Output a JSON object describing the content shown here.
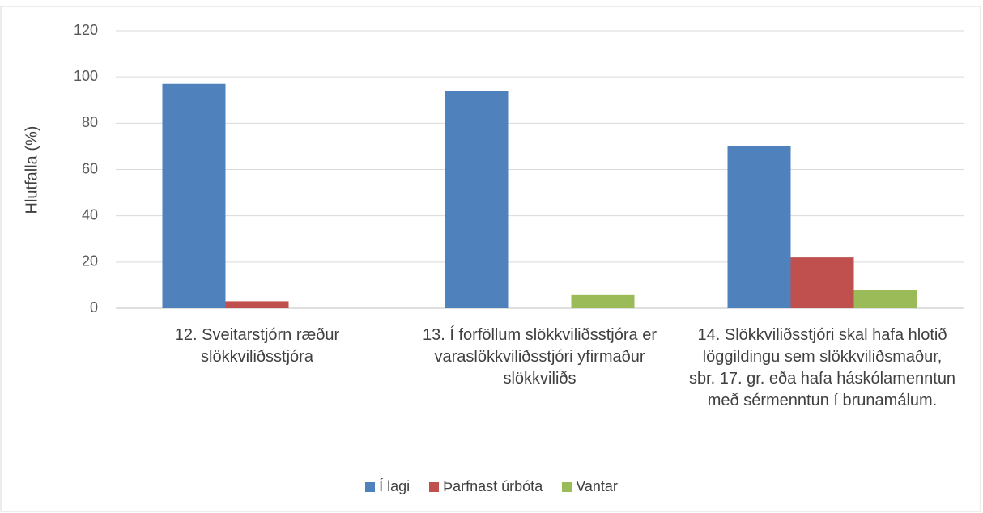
{
  "chart_data": {
    "type": "bar",
    "y_label": "Hlutfalla (%)",
    "categories": [
      "12. Sveitarstjórn ræður slökkviliðsstjóra",
      "13. Í forföllum slökkviliðsstjóra er varaslökkviliðsstjóri yfirmaður slökkviliðs",
      "14. Slökkviliðsstjóri skal hafa hlotið löggildingu sem slökkviliðsmaður, sbr. 17. gr. eða hafa háskólamenntun með sérmenntun í brunamálum."
    ],
    "series": [
      {
        "name": "Í lagi",
        "color": "#4f81bd",
        "values": [
          97,
          94,
          70
        ]
      },
      {
        "name": "Þarfnast úrbóta",
        "color": "#c0504d",
        "values": [
          3,
          0,
          22
        ]
      },
      {
        "name": "Vantar",
        "color": "#9bbb59",
        "values": [
          0,
          6,
          8
        ]
      }
    ],
    "ylim": [
      0,
      120
    ],
    "yticks": [
      0,
      20,
      40,
      60,
      80,
      100,
      120
    ],
    "grid": true,
    "legend": "bottom"
  }
}
